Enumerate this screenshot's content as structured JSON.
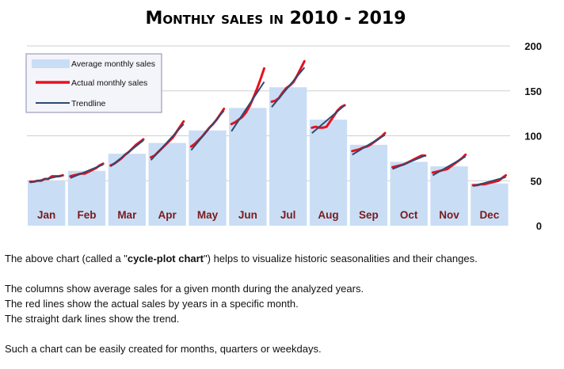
{
  "chart_data": {
    "type": "bar+line",
    "title": "Monthly sales in 2010 - 2019",
    "categories": [
      "Jan",
      "Feb",
      "Mar",
      "Apr",
      "May",
      "Jun",
      "Jul",
      "Aug",
      "Sep",
      "Oct",
      "Nov",
      "Dec"
    ],
    "ylim": [
      0,
      200
    ],
    "yticks": [
      0,
      50,
      100,
      150,
      200
    ],
    "y_axis_position": "right",
    "grid": true,
    "legend_position": "top-left",
    "series": [
      {
        "name": "Average monthly sales",
        "kind": "bar",
        "color": "#c9ddf5",
        "values": [
          50,
          61,
          80,
          92,
          106,
          131,
          154,
          118,
          90,
          71,
          66,
          47
        ]
      },
      {
        "name": "Actual monthly sales",
        "kind": "line-per-category",
        "color": "#e8101c",
        "years": [
          "2010",
          "2011",
          "2012",
          "2013",
          "2014",
          "2015",
          "2016",
          "2017",
          "2018",
          "2019"
        ],
        "values": [
          [
            49,
            49,
            50,
            50,
            52,
            52,
            55,
            55,
            55,
            56
          ],
          [
            55,
            56,
            57,
            58,
            58,
            60,
            62,
            64,
            67,
            69
          ],
          [
            67,
            69,
            72,
            75,
            79,
            82,
            86,
            90,
            93,
            96
          ],
          [
            76,
            78,
            82,
            86,
            90,
            94,
            98,
            104,
            110,
            116
          ],
          [
            88,
            91,
            95,
            99,
            104,
            109,
            113,
            118,
            124,
            130
          ],
          [
            113,
            115,
            118,
            121,
            126,
            133,
            142,
            152,
            163,
            175
          ],
          [
            138,
            139,
            142,
            148,
            153,
            156,
            160,
            167,
            175,
            183
          ],
          [
            109,
            110,
            109,
            109,
            110,
            116,
            122,
            128,
            132,
            134
          ],
          [
            83,
            84,
            85,
            87,
            88,
            90,
            93,
            96,
            99,
            103
          ],
          [
            65,
            66,
            67,
            68,
            70,
            72,
            74,
            76,
            78,
            78
          ],
          [
            59,
            60,
            61,
            62,
            63,
            66,
            69,
            72,
            75,
            79
          ],
          [
            45,
            45,
            46,
            46,
            47,
            48,
            49,
            50,
            53,
            56
          ]
        ]
      },
      {
        "name": "Trendline",
        "kind": "line-per-category",
        "color": "#2d4a72",
        "values": [
          [
            48,
            56
          ],
          [
            53,
            68
          ],
          [
            66,
            95
          ],
          [
            73,
            113
          ],
          [
            84,
            128
          ],
          [
            105,
            160
          ],
          [
            132,
            176
          ],
          [
            103,
            134
          ],
          [
            79,
            101
          ],
          [
            63,
            78
          ],
          [
            56,
            77
          ],
          [
            44,
            54
          ]
        ]
      }
    ]
  },
  "description": {
    "line1_before": "The above chart (called a \"",
    "line1_bold": "cycle-plot chart",
    "line1_after": "\") helps to visualize historic seasonalities and their changes.",
    "line2": "The columns show average sales for a given month during the analyzed years.",
    "line3": "The red lines show the actual sales by years in a specific month.",
    "line4": "The straight dark lines show the trend.",
    "line5": "Such a chart can be easily created for months, quarters or weekdays."
  }
}
